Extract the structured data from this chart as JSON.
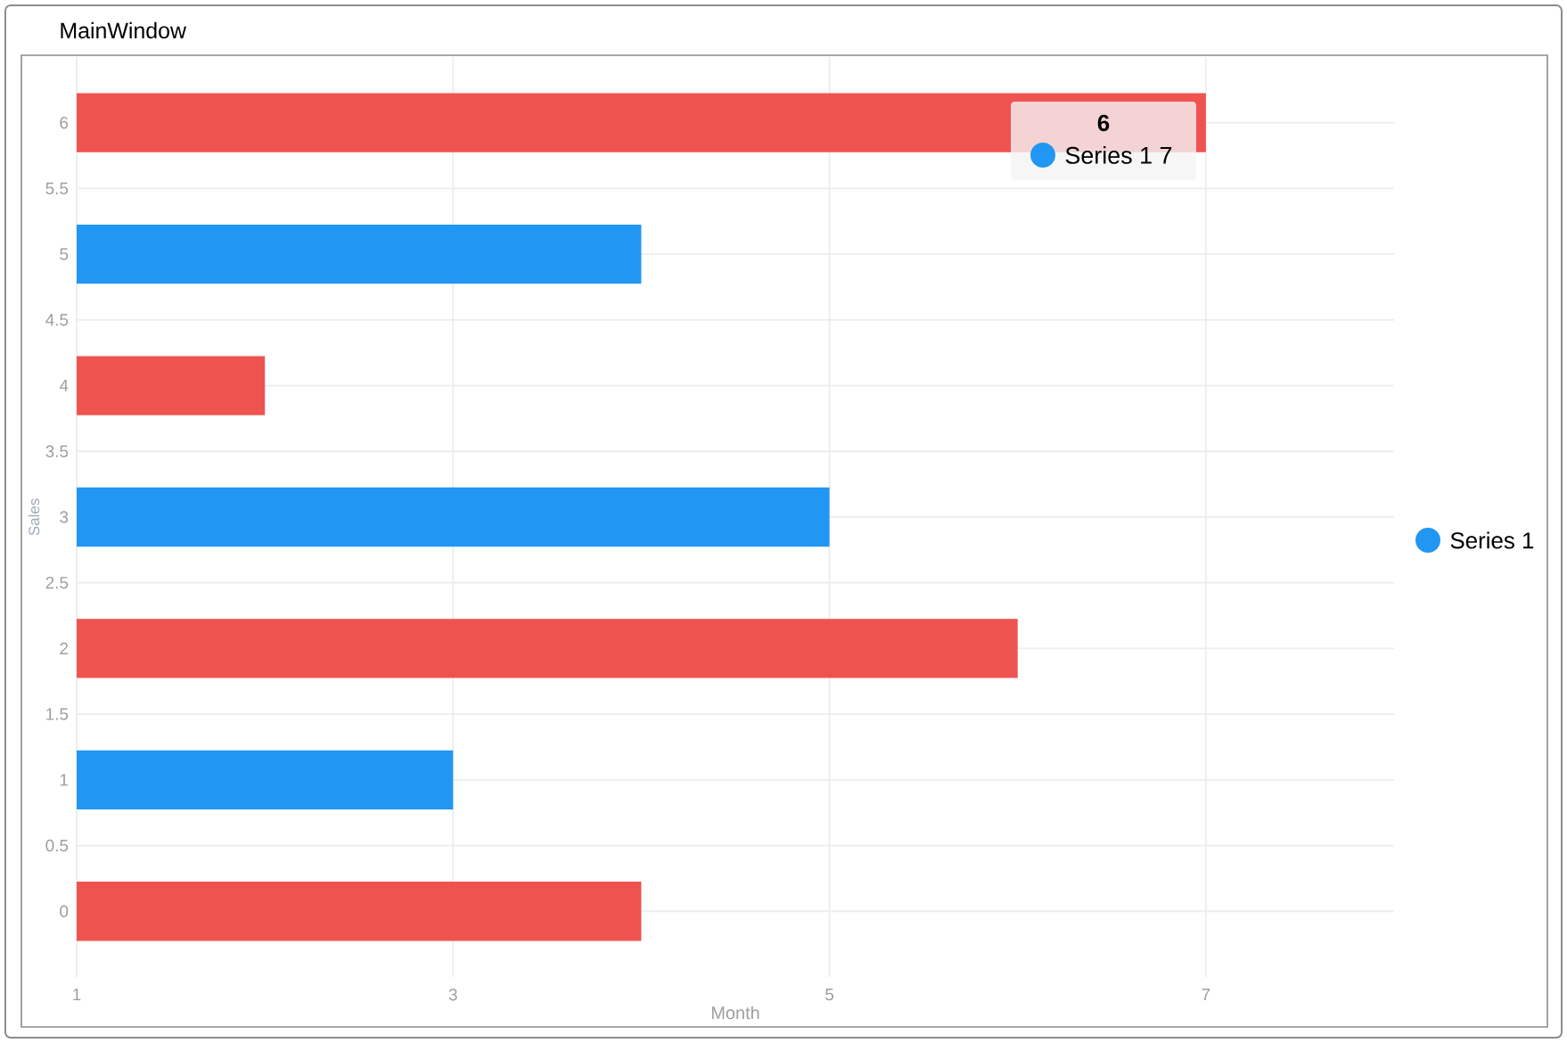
{
  "chart_data": {
    "type": "bar",
    "orientation": "horizontal",
    "title": "MainWindow",
    "xlabel": "Month",
    "ylabel": "Sales",
    "x": [
      0,
      1,
      2,
      3,
      4,
      5,
      6
    ],
    "series": [
      {
        "name": "Series 1",
        "color": "#2196f3",
        "colors": [
          "#ef5350",
          "#2196f3",
          "#ef5350",
          "#2196f3",
          "#ef5350",
          "#2196f3",
          "#ef5350"
        ],
        "values": [
          4,
          3,
          6,
          5,
          2,
          4,
          7
        ]
      }
    ],
    "xlim": [
      1,
      8
    ],
    "xticks": [
      1,
      3,
      5,
      7
    ],
    "ylim": [
      -0.5,
      6.5
    ],
    "yticks": [
      0,
      0.5,
      1,
      1.5,
      2,
      2.5,
      3,
      3.5,
      4,
      4.5,
      5,
      5.5,
      6
    ],
    "grid": true,
    "legend": "right",
    "annotations": [
      "6",
      "Series 1 7"
    ]
  }
}
